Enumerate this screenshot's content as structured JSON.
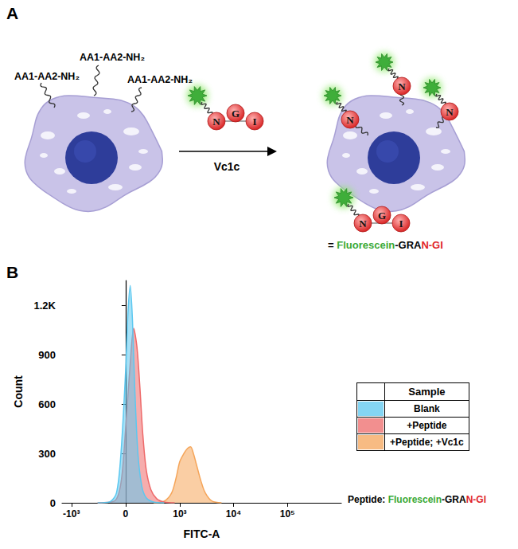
{
  "panel_labels": [
    "A",
    "B"
  ],
  "diagram": {
    "surface_groups": [
      "AA1-AA2-NH₂",
      "AA1-AA2-NH₂",
      "AA1-AA2-NH₂"
    ],
    "enzyme": "Vc1c",
    "peptide_residues": [
      "N",
      "G",
      "I"
    ],
    "labeled_residue": "N",
    "key": {
      "parts": [
        {
          "text": "= ",
          "color": "#000000"
        },
        {
          "text": "Fluorescein",
          "color": "#3aa935"
        },
        {
          "text": "-GRA",
          "color": "#000000"
        },
        {
          "text": "N-GI",
          "color": "#e0262b"
        }
      ]
    }
  },
  "chart_data": {
    "type": "area",
    "x_label": "FITC-A",
    "y_label": "Count",
    "xlim": [
      -1500,
      1000000
    ],
    "xticks": [
      {
        "value": -1000,
        "label": "-10³"
      },
      0,
      {
        "value": 1000,
        "label": "10³"
      },
      {
        "value": 10000,
        "label": "10⁴"
      },
      {
        "value": 100000,
        "label": "10⁵"
      }
    ],
    "ylim": [
      0,
      1350
    ],
    "yticks": [
      0,
      300,
      600,
      900,
      {
        "value": 1200,
        "label": "1.2K"
      }
    ],
    "grid": false,
    "legend": "right",
    "legend_title": "Sample",
    "series": [
      {
        "name": "Blank",
        "color": "#5cc8f0",
        "x": [
          -300,
          -150,
          -80,
          -40,
          0,
          20,
          40,
          60,
          80,
          110,
          150,
          200,
          300,
          500
        ],
        "values": [
          0,
          5,
          60,
          300,
          800,
          1150,
          1320,
          1100,
          700,
          300,
          100,
          30,
          5,
          0
        ]
      },
      {
        "name": "+Peptide",
        "color": "#ee6a6a",
        "x": [
          -300,
          -100,
          -40,
          0,
          40,
          70,
          100,
          130,
          160,
          200,
          260,
          350,
          500,
          800
        ],
        "values": [
          0,
          10,
          120,
          450,
          850,
          1060,
          950,
          700,
          420,
          200,
          80,
          25,
          5,
          0
        ]
      },
      {
        "name": "+Peptide; +Vc1c",
        "color": "#f5a55a",
        "x": [
          300,
          500,
          700,
          850,
          1000,
          1200,
          1400,
          1600,
          1800,
          2100,
          2500,
          3000,
          4000,
          6000
        ],
        "values": [
          0,
          10,
          60,
          150,
          250,
          300,
          330,
          340,
          300,
          220,
          130,
          60,
          10,
          0
        ]
      }
    ],
    "annotations": [
      {
        "parts": [
          {
            "text": "Peptide: ",
            "color": "#000000"
          },
          {
            "text": "Fluorescein",
            "color": "#3aa935"
          },
          {
            "text": "-GRA",
            "color": "#000000"
          },
          {
            "text": "N-GI",
            "color": "#e0262b"
          }
        ]
      }
    ]
  }
}
